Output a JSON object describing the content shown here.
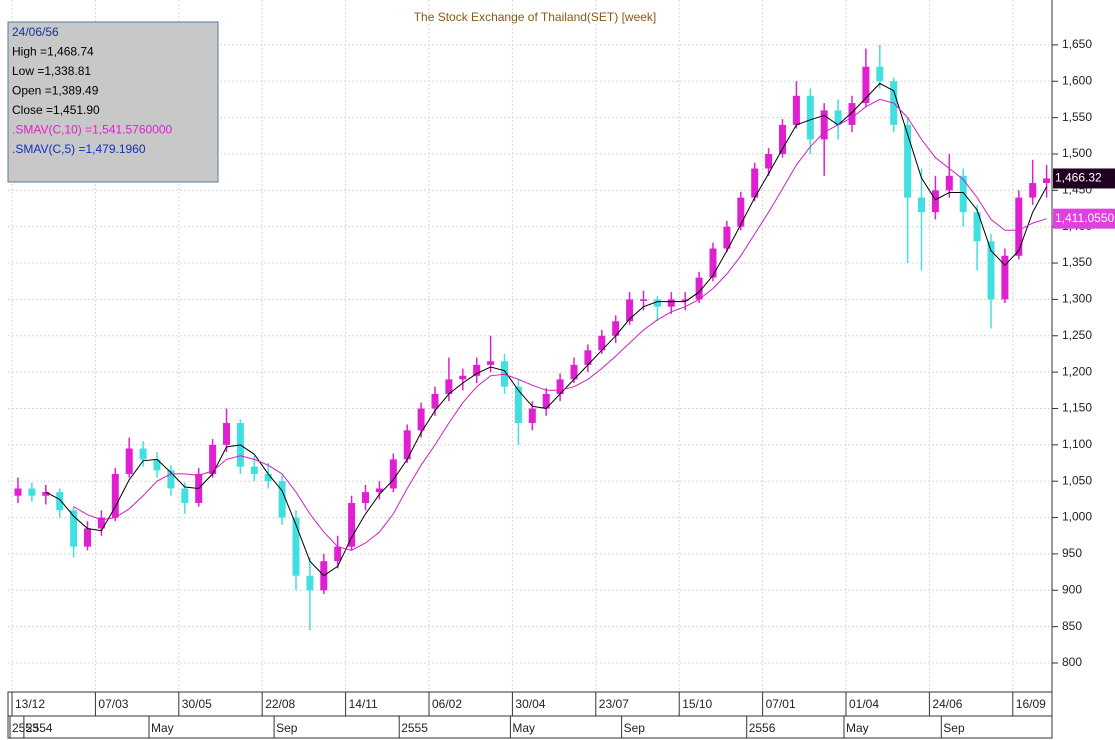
{
  "chart_data": {
    "type": "candlestick",
    "title": "The Stock Exchange of Thailand(SET) [week]",
    "info_lines": [
      "24/06/56",
      "High =1,468.74",
      "Low =1,338.81",
      "Open =1,389.49",
      "Close =1,451.90",
      ".SMAV(C,10)  =1,541.5760000",
      ".SMAV(C,5)  =1,479.1960"
    ],
    "up_color": "#e020d0",
    "down_color": "#40e0e0",
    "categories": [
      "13/12",
      null,
      null,
      null,
      null,
      null,
      "07/03",
      null,
      null,
      null,
      null,
      null,
      "30/05",
      null,
      null,
      null,
      null,
      null,
      "22/08",
      null,
      null,
      null,
      null,
      null,
      "14/11",
      null,
      null,
      null,
      null,
      null,
      "06/02",
      null,
      null,
      null,
      null,
      null,
      "30/04",
      null,
      null,
      null,
      null,
      null,
      "23/07",
      null,
      null,
      null,
      null,
      null,
      "15/10",
      null,
      null,
      null,
      null,
      null,
      "07/01",
      null,
      null,
      null,
      null,
      null,
      "01/04",
      null,
      null,
      null,
      null,
      null,
      "24/06",
      null,
      null,
      null,
      null,
      null,
      "16/09",
      null,
      null
    ],
    "categories2": [
      "2553",
      "2554",
      null,
      null,
      null,
      null,
      null,
      null,
      null,
      null,
      "May",
      null,
      null,
      null,
      null,
      null,
      null,
      null,
      null,
      "Sep",
      null,
      null,
      null,
      null,
      null,
      null,
      null,
      null,
      "2555",
      null,
      null,
      null,
      null,
      null,
      null,
      null,
      "May",
      null,
      null,
      null,
      null,
      null,
      null,
      null,
      "Sep",
      null,
      null,
      null,
      null,
      null,
      null,
      null,
      null,
      "2556",
      null,
      null,
      null,
      null,
      null,
      null,
      "May",
      null,
      null,
      null,
      null,
      null,
      null,
      "Sep",
      null,
      null,
      null
    ],
    "open": [
      1030,
      1040,
      1030,
      1035,
      1010,
      960,
      985,
      1000,
      1060,
      1095,
      1080,
      1065,
      1040,
      1020,
      1060,
      1100,
      1130,
      1070,
      1060,
      1050,
      1000,
      920,
      900,
      940,
      960,
      1020,
      1035,
      1040,
      1080,
      1120,
      1150,
      1170,
      1190,
      1195,
      1210,
      1215,
      1180,
      1130,
      1150,
      1170,
      1190,
      1210,
      1230,
      1250,
      1270,
      1300,
      1300,
      1290,
      1300,
      1300,
      1330,
      1370,
      1400,
      1440,
      1480,
      1500,
      1540,
      1580,
      1520,
      1560,
      1540,
      1570,
      1620,
      1600,
      1540,
      1440,
      1420,
      1450,
      1470,
      1420,
      1380,
      1300,
      1360,
      1440,
      1460
    ],
    "high": [
      1055,
      1048,
      1045,
      1040,
      1015,
      995,
      1010,
      1068,
      1110,
      1105,
      1090,
      1072,
      1048,
      1068,
      1108,
      1150,
      1135,
      1085,
      1075,
      1058,
      1010,
      945,
      950,
      975,
      1030,
      1045,
      1050,
      1088,
      1128,
      1158,
      1180,
      1220,
      1205,
      1220,
      1250,
      1225,
      1190,
      1160,
      1178,
      1198,
      1220,
      1238,
      1258,
      1278,
      1310,
      1312,
      1305,
      1310,
      1310,
      1338,
      1378,
      1408,
      1448,
      1488,
      1508,
      1548,
      1600,
      1590,
      1570,
      1575,
      1580,
      1645,
      1650,
      1605,
      1550,
      1480,
      1470,
      1500,
      1480,
      1430,
      1390,
      1370,
      1450,
      1492,
      1485
    ],
    "low": [
      1020,
      1022,
      1018,
      1000,
      945,
      955,
      975,
      995,
      1055,
      1070,
      1055,
      1030,
      1005,
      1015,
      1055,
      1090,
      1060,
      1050,
      1040,
      990,
      900,
      845,
      895,
      930,
      955,
      1010,
      1025,
      1035,
      1075,
      1110,
      1140,
      1160,
      1175,
      1185,
      1200,
      1170,
      1100,
      1120,
      1140,
      1160,
      1185,
      1200,
      1225,
      1240,
      1265,
      1285,
      1270,
      1280,
      1285,
      1295,
      1325,
      1365,
      1395,
      1435,
      1470,
      1495,
      1535,
      1500,
      1470,
      1520,
      1530,
      1565,
      1590,
      1530,
      1350,
      1340,
      1410,
      1440,
      1400,
      1340,
      1260,
      1295,
      1355,
      1430,
      1440
    ],
    "close": [
      1040,
      1030,
      1035,
      1010,
      960,
      985,
      1000,
      1060,
      1095,
      1080,
      1065,
      1040,
      1020,
      1060,
      1100,
      1130,
      1070,
      1060,
      1050,
      1000,
      920,
      900,
      940,
      960,
      1020,
      1035,
      1040,
      1080,
      1120,
      1150,
      1170,
      1190,
      1195,
      1210,
      1215,
      1180,
      1130,
      1150,
      1170,
      1190,
      1210,
      1230,
      1250,
      1270,
      1300,
      1300,
      1290,
      1300,
      1300,
      1330,
      1370,
      1400,
      1440,
      1480,
      1500,
      1540,
      1580,
      1520,
      1560,
      1540,
      1570,
      1620,
      1600,
      1540,
      1440,
      1420,
      1450,
      1470,
      1420,
      1380,
      1300,
      1360,
      1440,
      1460,
      1466.32
    ],
    "series": [
      {
        "name": ".SMAV(C,5)",
        "color": "#000000",
        "values": [
          null,
          null,
          1035,
          1025,
          1002,
          985,
          982,
          1015,
          1052,
          1078,
          1080,
          1062,
          1042,
          1040,
          1060,
          1097,
          1100,
          1087,
          1060,
          1037,
          990,
          940,
          920,
          933,
          973,
          1005,
          1032,
          1052,
          1080,
          1117,
          1147,
          1170,
          1185,
          1198,
          1207,
          1202,
          1175,
          1153,
          1150,
          1170,
          1190,
          1210,
          1230,
          1250,
          1273,
          1290,
          1297,
          1297,
          1297,
          1310,
          1333,
          1367,
          1403,
          1440,
          1473,
          1507,
          1540,
          1547,
          1553,
          1540,
          1557,
          1577,
          1597,
          1587,
          1527,
          1467,
          1437,
          1447,
          1447,
          1423,
          1367,
          1347,
          1367,
          1420,
          1455
        ]
      },
      {
        "name": ".SMAV(C,10)",
        "color": "#d020c0",
        "values": [
          null,
          null,
          null,
          null,
          1015,
          1004,
          997,
          1000,
          1012,
          1030,
          1050,
          1060,
          1060,
          1058,
          1064,
          1080,
          1085,
          1080,
          1072,
          1060,
          1035,
          1005,
          980,
          960,
          955,
          965,
          980,
          1005,
          1040,
          1072,
          1100,
          1130,
          1158,
          1180,
          1195,
          1197,
          1190,
          1182,
          1175,
          1175,
          1180,
          1190,
          1205,
          1222,
          1240,
          1258,
          1272,
          1283,
          1290,
          1300,
          1315,
          1335,
          1360,
          1390,
          1420,
          1452,
          1485,
          1510,
          1530,
          1540,
          1550,
          1565,
          1575,
          1570,
          1550,
          1520,
          1495,
          1480,
          1465,
          1440,
          1410,
          1395,
          1395,
          1405,
          1411.055
        ]
      }
    ],
    "price_tags": [
      {
        "value": 1466.32,
        "label": "1,466.32",
        "color": "#200020"
      },
      {
        "value": 1411.055,
        "label": "1,411.0550",
        "color": "#e040e0"
      }
    ],
    "ylim": [
      767,
      1698
    ],
    "yticks": [
      800,
      850,
      900,
      950,
      {
        "value": 1000,
        "label": "1,000"
      },
      {
        "value": 1050,
        "label": "1,050"
      },
      {
        "value": 1100,
        "label": "1,100"
      },
      {
        "value": 1150,
        "label": "1,150"
      },
      {
        "value": 1200,
        "label": "1,200"
      },
      {
        "value": 1250,
        "label": "1,250"
      },
      {
        "value": 1300,
        "label": "1,300"
      },
      {
        "value": 1350,
        "label": "1,350"
      },
      {
        "value": 1400,
        "label": "1,400"
      },
      {
        "value": 1450,
        "label": "1,450"
      },
      {
        "value": 1500,
        "label": "1,500"
      },
      {
        "value": 1550,
        "label": "1,550"
      },
      {
        "value": 1600,
        "label": "1,600"
      },
      {
        "value": 1650,
        "label": "1,650"
      }
    ],
    "grid": true
  }
}
